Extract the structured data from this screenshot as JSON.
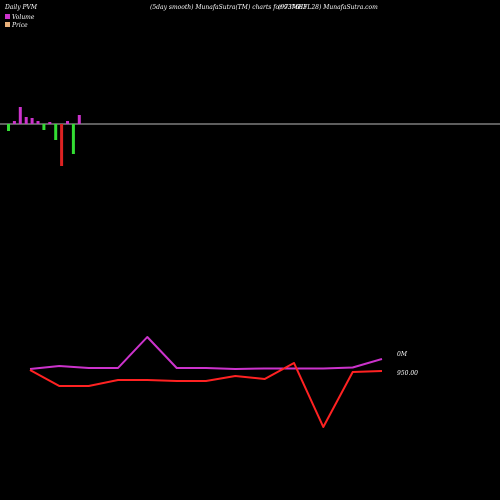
{
  "header": {
    "title_left": "Daily PVM",
    "title_mid": "(5day smooth) MunafaSutra(TM) charts for 937683",
    "title_right": "(973MHFL28) MunafaSutra.com"
  },
  "legend": {
    "volume_label": "Volume",
    "price_label": "Price",
    "volume_color": "#cc33cc",
    "price_color": "#e8b07a"
  },
  "chart_data": [
    {
      "type": "bar",
      "name": "volume",
      "baseline_color": "#bbbbbb",
      "up_color": "#cc33cc",
      "down_color": "#33dd33",
      "big_down_color": "#dd2222",
      "values": [
        -7,
        3,
        17,
        7,
        6,
        3,
        -6,
        2,
        -16,
        -42,
        3,
        -30,
        9
      ],
      "ylim": [
        -45,
        20
      ]
    },
    {
      "type": "line",
      "name": "pvm",
      "series": [
        {
          "color": "#cc33cc",
          "values": [
            6,
            9,
            7,
            7,
            38,
            7,
            7,
            6,
            6.5,
            6.5,
            6.5,
            7.5,
            16
          ]
        },
        {
          "color": "#ff2222",
          "values": [
            5,
            -11,
            -11,
            -5,
            -5,
            -6,
            -6,
            -1,
            -4,
            12,
            -52,
            3,
            4
          ]
        }
      ],
      "ylim": [
        -60,
        45
      ],
      "labels": {
        "top": "0M",
        "bottom": "950.00"
      }
    }
  ]
}
